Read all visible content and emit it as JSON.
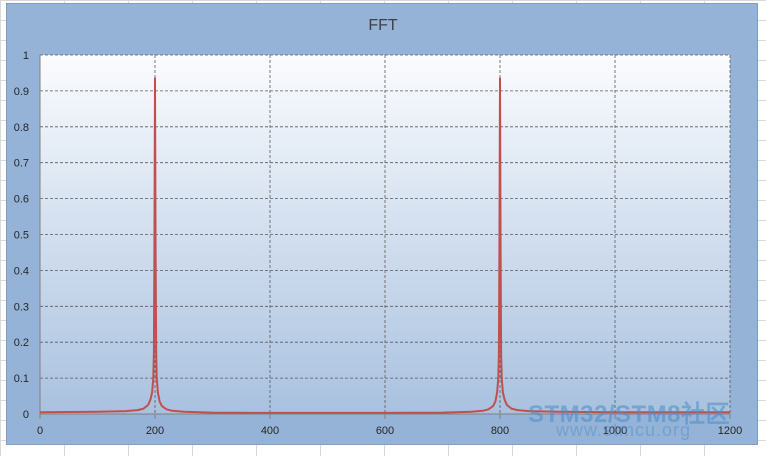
{
  "chart_data": {
    "type": "line",
    "title": "FFT",
    "xlabel": "",
    "ylabel": "",
    "xlim": [
      0,
      1200
    ],
    "ylim": [
      0,
      1
    ],
    "x_ticks": [
      "0",
      "200",
      "400",
      "600",
      "800",
      "1000",
      "1200"
    ],
    "y_ticks": [
      "0",
      "0.1",
      "0.2",
      "0.3",
      "0.4",
      "0.5",
      "0.6",
      "0.7",
      "0.8",
      "0.9",
      "1"
    ],
    "grid": true,
    "legend": "none",
    "series": [
      {
        "color": "#c0504d",
        "x": [
          0,
          100,
          150,
          170,
          180,
          188,
          192,
          195,
          197,
          198,
          199,
          200,
          201,
          202,
          203,
          205,
          208,
          212,
          220,
          230,
          250,
          300,
          400,
          500,
          600,
          700,
          750,
          770,
          780,
          788,
          792,
          795,
          797,
          798,
          799,
          800,
          801,
          802,
          803,
          805,
          808,
          812,
          820,
          830,
          850,
          900,
          1000,
          1100,
          1200
        ],
        "y": [
          0.005,
          0.006,
          0.008,
          0.011,
          0.015,
          0.025,
          0.04,
          0.06,
          0.1,
          0.17,
          0.45,
          0.935,
          0.45,
          0.17,
          0.1,
          0.06,
          0.035,
          0.022,
          0.013,
          0.009,
          0.006,
          0.004,
          0.003,
          0.003,
          0.003,
          0.004,
          0.006,
          0.009,
          0.013,
          0.022,
          0.035,
          0.06,
          0.1,
          0.17,
          0.45,
          0.935,
          0.45,
          0.17,
          0.1,
          0.06,
          0.04,
          0.025,
          0.015,
          0.011,
          0.008,
          0.006,
          0.005,
          0.005,
          0.005
        ]
      }
    ]
  },
  "watermark": {
    "brand": "STM32/STM8社区",
    "url": "www.stmcu.org"
  }
}
